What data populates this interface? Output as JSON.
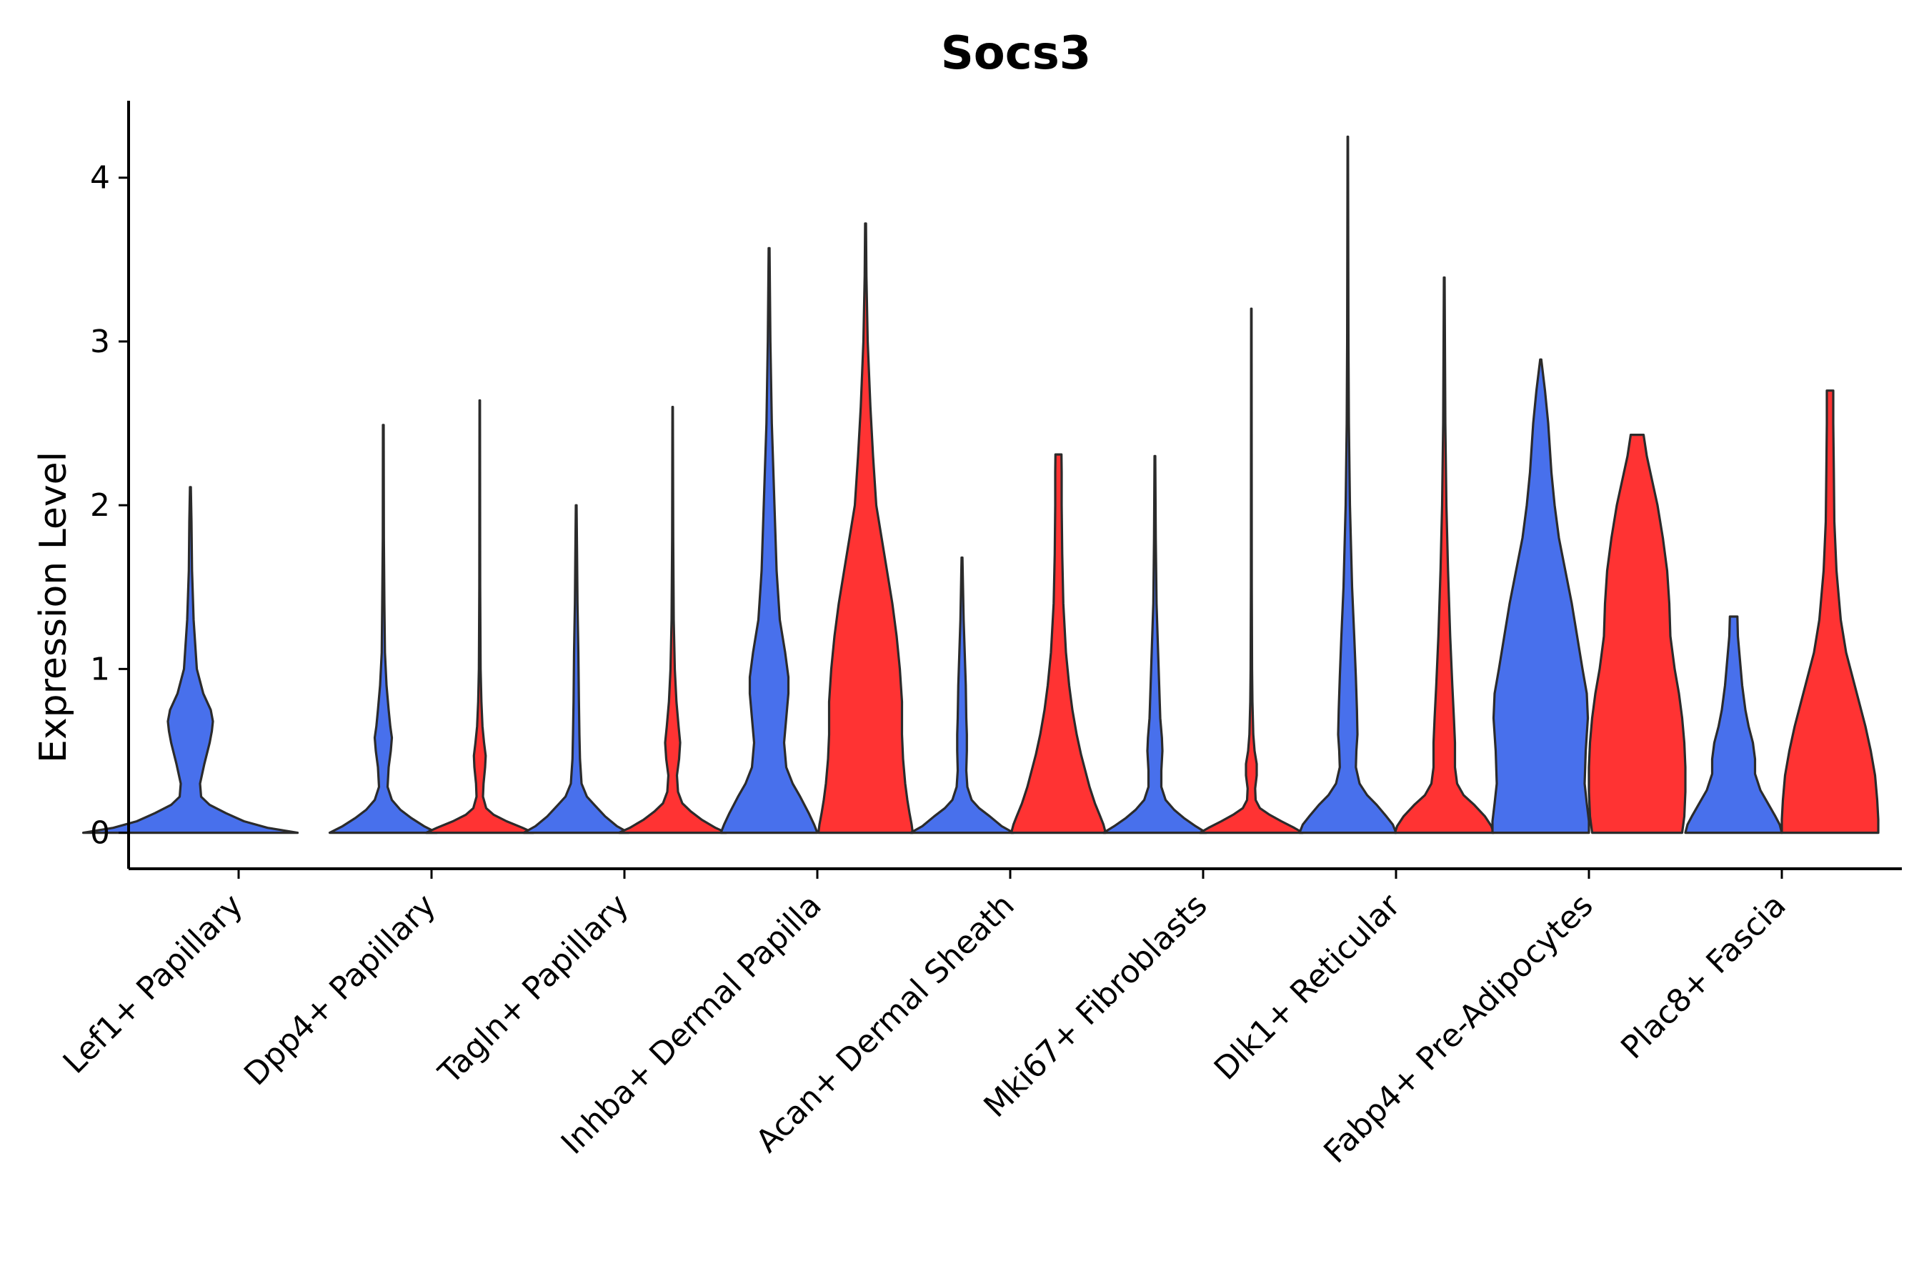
{
  "chart_data": {
    "type": "violin",
    "title": "Socs3",
    "ylabel": "Expression Level",
    "xlabel": "",
    "ylim": [
      -0.22,
      4.47
    ],
    "yticks": [
      0,
      1,
      2,
      3,
      4
    ],
    "colors": {
      "group1": "#4870ec",
      "group2": "#ff3333",
      "outline": "#2b2b2b"
    },
    "max_half_width": 0.45,
    "categories": [
      "Lef1+ Papillary",
      "Dpp4+ Papillary",
      "Tagln+ Papillary",
      "Inhba+ Dermal Papilla",
      "Acan+ Dermal Sheath",
      "Mki67+ Fibroblasts",
      "Dlk1+ Reticular",
      "Fabp4+ Pre-Adipocytes",
      "Plac8+ Fascia"
    ],
    "violins": [
      {
        "category": "Lef1+ Papillary",
        "group": "group1",
        "max": 2.11,
        "profile": [
          [
            0,
            1.0
          ],
          [
            0.03,
            0.72
          ],
          [
            0.07,
            0.5
          ],
          [
            0.12,
            0.33
          ],
          [
            0.17,
            0.18
          ],
          [
            0.22,
            0.1
          ],
          [
            0.3,
            0.09
          ],
          [
            0.42,
            0.13
          ],
          [
            0.55,
            0.18
          ],
          [
            0.62,
            0.2
          ],
          [
            0.68,
            0.21
          ],
          [
            0.75,
            0.19
          ],
          [
            0.85,
            0.12
          ],
          [
            1.0,
            0.06
          ],
          [
            1.3,
            0.03
          ],
          [
            1.6,
            0.015
          ],
          [
            1.9,
            0.01
          ],
          [
            2.11,
            0.004
          ]
        ]
      },
      {
        "category": "Dpp4+ Papillary",
        "group": "group1",
        "max": 2.49,
        "profile": [
          [
            0,
            0.5
          ],
          [
            0.04,
            0.38
          ],
          [
            0.09,
            0.26
          ],
          [
            0.14,
            0.16
          ],
          [
            0.2,
            0.08
          ],
          [
            0.28,
            0.04
          ],
          [
            0.4,
            0.05
          ],
          [
            0.5,
            0.07
          ],
          [
            0.58,
            0.08
          ],
          [
            0.65,
            0.065
          ],
          [
            0.75,
            0.05
          ],
          [
            0.9,
            0.03
          ],
          [
            1.1,
            0.015
          ],
          [
            1.4,
            0.01
          ],
          [
            1.8,
            0.005
          ],
          [
            2.49,
            0.003
          ]
        ]
      },
      {
        "category": "Dpp4+ Papillary",
        "group": "group2",
        "max": 2.64,
        "profile": [
          [
            0,
            0.5
          ],
          [
            0.03,
            0.4
          ],
          [
            0.07,
            0.25
          ],
          [
            0.11,
            0.13
          ],
          [
            0.15,
            0.06
          ],
          [
            0.22,
            0.03
          ],
          [
            0.3,
            0.035
          ],
          [
            0.4,
            0.05
          ],
          [
            0.47,
            0.055
          ],
          [
            0.55,
            0.04
          ],
          [
            0.65,
            0.025
          ],
          [
            0.8,
            0.015
          ],
          [
            1.0,
            0.008
          ],
          [
            1.5,
            0.004
          ],
          [
            2.64,
            0.002
          ]
        ]
      },
      {
        "category": "Tagln+ Papillary",
        "group": "group1",
        "max": 2.0,
        "profile": [
          [
            0,
            0.49
          ],
          [
            0.04,
            0.38
          ],
          [
            0.1,
            0.27
          ],
          [
            0.17,
            0.17
          ],
          [
            0.22,
            0.1
          ],
          [
            0.3,
            0.05
          ],
          [
            0.45,
            0.035
          ],
          [
            0.6,
            0.03
          ],
          [
            0.8,
            0.025
          ],
          [
            1.1,
            0.02
          ],
          [
            1.4,
            0.012
          ],
          [
            1.7,
            0.008
          ],
          [
            2.0,
            0.003
          ]
        ]
      },
      {
        "category": "Tagln+ Papillary",
        "group": "group2",
        "max": 2.6,
        "profile": [
          [
            0,
            0.5
          ],
          [
            0.03,
            0.4
          ],
          [
            0.08,
            0.27
          ],
          [
            0.13,
            0.17
          ],
          [
            0.18,
            0.09
          ],
          [
            0.25,
            0.05
          ],
          [
            0.35,
            0.04
          ],
          [
            0.45,
            0.06
          ],
          [
            0.55,
            0.07
          ],
          [
            0.65,
            0.055
          ],
          [
            0.8,
            0.035
          ],
          [
            1.0,
            0.02
          ],
          [
            1.3,
            0.01
          ],
          [
            1.8,
            0.005
          ],
          [
            2.6,
            0.002
          ]
        ]
      },
      {
        "category": "Inhba+ Dermal Papilla",
        "group": "group1",
        "max": 3.57,
        "profile": [
          [
            0,
            0.45
          ],
          [
            0.05,
            0.42
          ],
          [
            0.12,
            0.37
          ],
          [
            0.22,
            0.29
          ],
          [
            0.3,
            0.22
          ],
          [
            0.4,
            0.16
          ],
          [
            0.55,
            0.14
          ],
          [
            0.7,
            0.16
          ],
          [
            0.85,
            0.18
          ],
          [
            0.95,
            0.18
          ],
          [
            1.1,
            0.15
          ],
          [
            1.3,
            0.1
          ],
          [
            1.6,
            0.07
          ],
          [
            2.0,
            0.05
          ],
          [
            2.5,
            0.025
          ],
          [
            3.0,
            0.012
          ],
          [
            3.57,
            0.004
          ]
        ]
      },
      {
        "category": "Inhba+ Dermal Papilla",
        "group": "group2",
        "max": 3.72,
        "profile": [
          [
            0,
            0.44
          ],
          [
            0.05,
            0.43
          ],
          [
            0.12,
            0.41
          ],
          [
            0.2,
            0.39
          ],
          [
            0.3,
            0.37
          ],
          [
            0.45,
            0.35
          ],
          [
            0.6,
            0.34
          ],
          [
            0.8,
            0.34
          ],
          [
            1.0,
            0.32
          ],
          [
            1.2,
            0.29
          ],
          [
            1.4,
            0.25
          ],
          [
            1.6,
            0.2
          ],
          [
            1.8,
            0.15
          ],
          [
            2.0,
            0.1
          ],
          [
            2.3,
            0.07
          ],
          [
            2.6,
            0.045
          ],
          [
            3.0,
            0.02
          ],
          [
            3.4,
            0.008
          ],
          [
            3.72,
            0.004
          ]
        ]
      },
      {
        "category": "Acan+ Dermal Sheath",
        "group": "group1",
        "max": 1.68,
        "profile": [
          [
            0,
            0.48
          ],
          [
            0.04,
            0.37
          ],
          [
            0.1,
            0.26
          ],
          [
            0.15,
            0.16
          ],
          [
            0.2,
            0.09
          ],
          [
            0.28,
            0.05
          ],
          [
            0.38,
            0.04
          ],
          [
            0.5,
            0.045
          ],
          [
            0.6,
            0.045
          ],
          [
            0.7,
            0.04
          ],
          [
            0.9,
            0.035
          ],
          [
            1.1,
            0.025
          ],
          [
            1.3,
            0.015
          ],
          [
            1.68,
            0.004
          ]
        ]
      },
      {
        "category": "Acan+ Dermal Sheath",
        "group": "group2",
        "max": 2.31,
        "profile": [
          [
            0,
            0.44
          ],
          [
            0.05,
            0.42
          ],
          [
            0.1,
            0.39
          ],
          [
            0.18,
            0.34
          ],
          [
            0.28,
            0.29
          ],
          [
            0.38,
            0.25
          ],
          [
            0.48,
            0.21
          ],
          [
            0.6,
            0.17
          ],
          [
            0.75,
            0.13
          ],
          [
            0.9,
            0.1
          ],
          [
            1.1,
            0.07
          ],
          [
            1.4,
            0.045
          ],
          [
            1.7,
            0.035
          ],
          [
            2.0,
            0.03
          ],
          [
            2.2,
            0.03
          ],
          [
            2.31,
            0.028
          ]
        ]
      },
      {
        "category": "Mki67+ Fibroblasts",
        "group": "group1",
        "max": 2.3,
        "profile": [
          [
            0,
            0.48
          ],
          [
            0.04,
            0.38
          ],
          [
            0.09,
            0.27
          ],
          [
            0.14,
            0.18
          ],
          [
            0.2,
            0.1
          ],
          [
            0.28,
            0.06
          ],
          [
            0.38,
            0.06
          ],
          [
            0.5,
            0.07
          ],
          [
            0.58,
            0.065
          ],
          [
            0.7,
            0.05
          ],
          [
            0.9,
            0.04
          ],
          [
            1.1,
            0.03
          ],
          [
            1.4,
            0.015
          ],
          [
            1.8,
            0.008
          ],
          [
            2.3,
            0.003
          ]
        ]
      },
      {
        "category": "Mki67+ Fibroblasts",
        "group": "group2",
        "max": 3.2,
        "profile": [
          [
            0,
            0.48
          ],
          [
            0.03,
            0.4
          ],
          [
            0.07,
            0.28
          ],
          [
            0.11,
            0.17
          ],
          [
            0.15,
            0.08
          ],
          [
            0.2,
            0.04
          ],
          [
            0.27,
            0.035
          ],
          [
            0.35,
            0.05
          ],
          [
            0.42,
            0.05
          ],
          [
            0.5,
            0.03
          ],
          [
            0.6,
            0.018
          ],
          [
            0.8,
            0.01
          ],
          [
            1.0,
            0.007
          ],
          [
            1.5,
            0.004
          ],
          [
            3.2,
            0.002
          ]
        ]
      },
      {
        "category": "Dlk1+ Reticular",
        "group": "group1",
        "max": 4.25,
        "profile": [
          [
            0,
            0.45
          ],
          [
            0.05,
            0.42
          ],
          [
            0.1,
            0.36
          ],
          [
            0.17,
            0.27
          ],
          [
            0.23,
            0.18
          ],
          [
            0.3,
            0.11
          ],
          [
            0.4,
            0.075
          ],
          [
            0.5,
            0.08
          ],
          [
            0.6,
            0.09
          ],
          [
            0.75,
            0.085
          ],
          [
            0.95,
            0.075
          ],
          [
            1.2,
            0.06
          ],
          [
            1.5,
            0.04
          ],
          [
            2.0,
            0.02
          ],
          [
            2.5,
            0.01
          ],
          [
            3.0,
            0.006
          ],
          [
            4.25,
            0.002
          ]
        ]
      },
      {
        "category": "Dlk1+ Reticular",
        "group": "group2",
        "max": 3.39,
        "profile": [
          [
            0,
            0.46
          ],
          [
            0.04,
            0.44
          ],
          [
            0.1,
            0.38
          ],
          [
            0.17,
            0.28
          ],
          [
            0.23,
            0.18
          ],
          [
            0.3,
            0.12
          ],
          [
            0.4,
            0.1
          ],
          [
            0.55,
            0.1
          ],
          [
            0.7,
            0.09
          ],
          [
            0.9,
            0.075
          ],
          [
            1.2,
            0.055
          ],
          [
            1.6,
            0.035
          ],
          [
            2.0,
            0.02
          ],
          [
            2.5,
            0.01
          ],
          [
            3.39,
            0.003
          ]
        ]
      },
      {
        "category": "Fabp4+ Pre-Adipocytes",
        "group": "group1",
        "max": 2.89,
        "profile": [
          [
            0,
            0.45
          ],
          [
            0.07,
            0.45
          ],
          [
            0.18,
            0.43
          ],
          [
            0.3,
            0.41
          ],
          [
            0.5,
            0.42
          ],
          [
            0.7,
            0.44
          ],
          [
            0.85,
            0.43
          ],
          [
            1.0,
            0.39
          ],
          [
            1.2,
            0.34
          ],
          [
            1.4,
            0.29
          ],
          [
            1.6,
            0.23
          ],
          [
            1.8,
            0.17
          ],
          [
            2.0,
            0.13
          ],
          [
            2.2,
            0.1
          ],
          [
            2.5,
            0.07
          ],
          [
            2.7,
            0.04
          ],
          [
            2.89,
            0.005
          ]
        ]
      },
      {
        "category": "Fabp4+ Pre-Adipocytes",
        "group": "group2",
        "max": 2.43,
        "profile": [
          [
            0,
            0.42
          ],
          [
            0.1,
            0.44
          ],
          [
            0.25,
            0.45
          ],
          [
            0.4,
            0.45
          ],
          [
            0.55,
            0.44
          ],
          [
            0.7,
            0.42
          ],
          [
            0.85,
            0.39
          ],
          [
            1.0,
            0.35
          ],
          [
            1.2,
            0.31
          ],
          [
            1.4,
            0.3
          ],
          [
            1.6,
            0.28
          ],
          [
            1.8,
            0.24
          ],
          [
            2.0,
            0.19
          ],
          [
            2.15,
            0.14
          ],
          [
            2.3,
            0.09
          ],
          [
            2.43,
            0.06
          ]
        ]
      },
      {
        "category": "Plac8+ Fascia",
        "group": "group1",
        "max": 1.32,
        "profile": [
          [
            0,
            0.45
          ],
          [
            0.05,
            0.43
          ],
          [
            0.1,
            0.39
          ],
          [
            0.18,
            0.32
          ],
          [
            0.26,
            0.25
          ],
          [
            0.36,
            0.2
          ],
          [
            0.45,
            0.2
          ],
          [
            0.55,
            0.18
          ],
          [
            0.65,
            0.14
          ],
          [
            0.75,
            0.11
          ],
          [
            0.9,
            0.08
          ],
          [
            1.05,
            0.06
          ],
          [
            1.2,
            0.04
          ],
          [
            1.32,
            0.035
          ]
        ]
      },
      {
        "category": "Plac8+ Fascia",
        "group": "group2",
        "max": 2.7,
        "profile": [
          [
            0,
            0.45
          ],
          [
            0.08,
            0.45
          ],
          [
            0.2,
            0.44
          ],
          [
            0.35,
            0.42
          ],
          [
            0.5,
            0.38
          ],
          [
            0.65,
            0.33
          ],
          [
            0.8,
            0.27
          ],
          [
            0.95,
            0.21
          ],
          [
            1.1,
            0.15
          ],
          [
            1.3,
            0.1
          ],
          [
            1.6,
            0.06
          ],
          [
            1.9,
            0.04
          ],
          [
            2.2,
            0.035
          ],
          [
            2.5,
            0.03
          ],
          [
            2.7,
            0.03
          ]
        ]
      }
    ]
  }
}
